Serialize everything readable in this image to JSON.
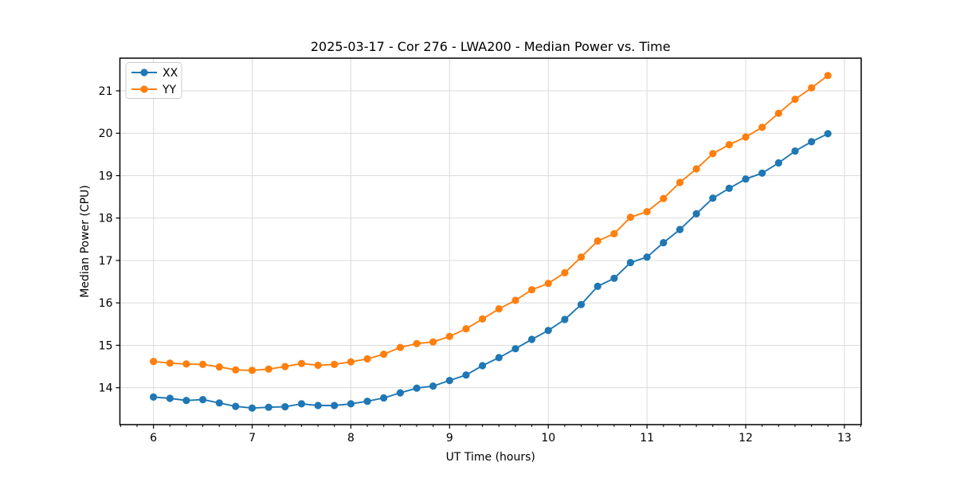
{
  "figure": {
    "title": "2025-03-17 - Cor 276 - LWA200 - Median Power vs. Time"
  },
  "chart_data": {
    "type": "line",
    "title": "2025-03-17 - Cor 276 - LWA200 - Median Power vs. Time",
    "xlabel": "UT Time (hours)",
    "ylabel": "Median Power (CPU)",
    "xlim": [
      5.66,
      13.17
    ],
    "ylim": [
      13.13,
      21.77
    ],
    "x_ticks": [
      6,
      7,
      8,
      9,
      10,
      11,
      12,
      13
    ],
    "y_ticks": [
      14,
      15,
      16,
      17,
      18,
      19,
      20,
      21
    ],
    "x_minor_tick_step_hours": 0.16667,
    "grid": true,
    "legend_position": "upper-left",
    "marker": "circle",
    "x": [
      6.0,
      6.167,
      6.333,
      6.5,
      6.667,
      6.833,
      7.0,
      7.167,
      7.333,
      7.5,
      7.667,
      7.833,
      8.0,
      8.167,
      8.333,
      8.5,
      8.667,
      8.833,
      9.0,
      9.167,
      9.333,
      9.5,
      9.667,
      9.833,
      10.0,
      10.167,
      10.333,
      10.5,
      10.667,
      10.833,
      11.0,
      11.167,
      11.333,
      11.5,
      11.667,
      11.833,
      12.0,
      12.167,
      12.333,
      12.5,
      12.667,
      12.833
    ],
    "series": [
      {
        "name": "XX",
        "color": "#1f77b4",
        "values": [
          13.78,
          13.75,
          13.7,
          13.72,
          13.64,
          13.56,
          13.52,
          13.54,
          13.55,
          13.62,
          13.58,
          13.58,
          13.62,
          13.68,
          13.76,
          13.88,
          13.99,
          14.04,
          14.17,
          14.3,
          14.52,
          14.71,
          14.92,
          15.14,
          15.35,
          15.61,
          15.96,
          16.39,
          16.58,
          16.95,
          17.08,
          17.42,
          17.73,
          18.1,
          18.47,
          18.7,
          18.92,
          19.06,
          19.3,
          19.58,
          19.8,
          19.99
        ]
      },
      {
        "name": "YY",
        "color": "#ff7f0e",
        "values": [
          14.62,
          14.58,
          14.56,
          14.55,
          14.49,
          14.42,
          14.41,
          14.44,
          14.5,
          14.57,
          14.53,
          14.55,
          14.61,
          14.68,
          14.79,
          14.95,
          15.04,
          15.08,
          15.21,
          15.39,
          15.62,
          15.86,
          16.06,
          16.31,
          16.46,
          16.71,
          17.08,
          17.46,
          17.63,
          18.02,
          18.15,
          18.46,
          18.84,
          19.16,
          19.52,
          19.73,
          19.91,
          20.14,
          20.47,
          20.8,
          21.07,
          21.36
        ]
      }
    ]
  }
}
